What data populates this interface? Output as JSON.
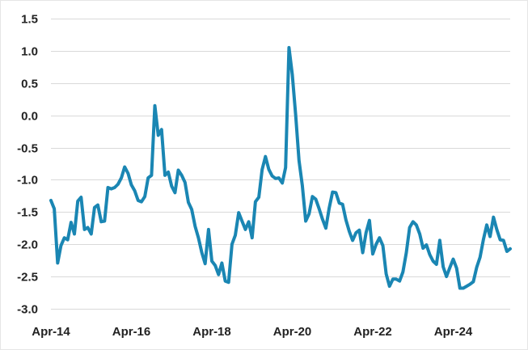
{
  "chart_data": {
    "type": "line",
    "title": "",
    "xlabel": "",
    "ylabel": "",
    "ylim": [
      -3.0,
      1.5
    ],
    "y_ticks": [
      "1.5",
      "1.0",
      "0.5",
      "0.0",
      "-0.5",
      "-1.0",
      "-1.5",
      "-2.0",
      "-2.5",
      "-3.0"
    ],
    "x_ticks": [
      "Apr-14",
      "Apr-16",
      "Apr-18",
      "Apr-20",
      "Apr-22",
      "Apr-24"
    ],
    "x_tick_dates": [
      "2014-04",
      "2016-04",
      "2018-04",
      "2020-04",
      "2022-04",
      "2024-04"
    ],
    "x_range": [
      "2014-04",
      "2025-09"
    ],
    "grid": true,
    "legend": "none",
    "color": "#1a86b3",
    "series": [
      {
        "x": [
          "2014-04",
          "2014-05",
          "2014-06",
          "2014-07",
          "2014-08",
          "2014-09",
          "2014-10",
          "2014-11",
          "2014-12",
          "2015-01",
          "2015-02",
          "2015-03",
          "2015-04",
          "2015-05",
          "2015-06",
          "2015-07",
          "2015-08",
          "2015-09",
          "2015-10",
          "2015-11",
          "2015-12",
          "2016-01",
          "2016-02",
          "2016-03",
          "2016-04",
          "2016-05",
          "2016-06",
          "2016-07",
          "2016-08",
          "2016-09",
          "2016-10",
          "2016-11",
          "2016-12",
          "2017-01",
          "2017-02",
          "2017-03",
          "2017-04",
          "2017-05",
          "2017-06",
          "2017-07",
          "2017-08",
          "2017-09",
          "2017-10",
          "2017-11",
          "2017-12",
          "2018-01",
          "2018-02",
          "2018-03",
          "2018-04",
          "2018-05",
          "2018-06",
          "2018-07",
          "2018-08",
          "2018-09",
          "2018-10",
          "2018-11",
          "2018-12",
          "2019-01",
          "2019-02",
          "2019-03",
          "2019-04",
          "2019-05",
          "2019-06",
          "2019-07",
          "2019-08",
          "2019-09",
          "2019-10",
          "2019-11",
          "2019-12",
          "2020-01",
          "2020-02",
          "2020-03",
          "2020-04",
          "2020-05",
          "2020-06",
          "2020-07",
          "2020-08",
          "2020-09",
          "2020-10",
          "2020-11",
          "2020-12",
          "2021-01",
          "2021-02",
          "2021-03",
          "2021-04",
          "2021-05",
          "2021-06",
          "2021-07",
          "2021-08",
          "2021-09",
          "2021-10",
          "2021-11",
          "2021-12",
          "2022-01",
          "2022-02",
          "2022-03",
          "2022-04",
          "2022-05",
          "2022-06",
          "2022-07",
          "2022-08",
          "2022-09",
          "2022-10",
          "2022-11",
          "2022-12",
          "2023-01",
          "2023-02",
          "2023-03",
          "2023-04",
          "2023-05",
          "2023-06",
          "2023-07",
          "2023-08",
          "2023-09",
          "2023-10",
          "2023-11",
          "2023-12",
          "2024-01",
          "2024-02",
          "2024-03",
          "2024-04",
          "2024-05",
          "2024-06",
          "2024-07",
          "2024-08",
          "2024-09",
          "2024-10",
          "2024-11",
          "2024-12",
          "2025-01",
          "2025-02",
          "2025-03",
          "2025-04",
          "2025-05",
          "2025-06",
          "2025-07",
          "2025-08",
          "2025-09"
        ],
        "values": [
          -1.32,
          -1.45,
          -2.29,
          -2.02,
          -1.9,
          -1.93,
          -1.66,
          -1.84,
          -1.33,
          -1.27,
          -1.77,
          -1.74,
          -1.84,
          -1.43,
          -1.39,
          -1.65,
          -1.64,
          -1.12,
          -1.14,
          -1.12,
          -1.07,
          -0.97,
          -0.8,
          -0.9,
          -1.08,
          -1.17,
          -1.32,
          -1.34,
          -1.26,
          -0.97,
          -0.93,
          0.15,
          -0.31,
          -0.22,
          -0.93,
          -0.88,
          -1.1,
          -1.2,
          -0.85,
          -0.93,
          -1.04,
          -1.35,
          -1.46,
          -1.72,
          -1.9,
          -2.13,
          -2.3,
          -1.77,
          -2.26,
          -2.33,
          -2.47,
          -2.29,
          -2.57,
          -2.59,
          -2.0,
          -1.86,
          -1.51,
          -1.64,
          -1.77,
          -1.65,
          -1.9,
          -1.34,
          -1.27,
          -0.84,
          -0.64,
          -0.84,
          -0.94,
          -0.98,
          -0.97,
          -1.05,
          -0.81,
          1.05,
          0.63,
          0.0,
          -0.7,
          -1.09,
          -1.64,
          -1.53,
          -1.26,
          -1.3,
          -1.45,
          -1.61,
          -1.75,
          -1.44,
          -1.19,
          -1.2,
          -1.36,
          -1.38,
          -1.62,
          -1.8,
          -1.94,
          -1.82,
          -1.78,
          -2.13,
          -1.82,
          -1.63,
          -2.15,
          -2.0,
          -1.9,
          -2.02,
          -2.46,
          -2.65,
          -2.54,
          -2.54,
          -2.57,
          -2.43,
          -2.13,
          -1.74,
          -1.65,
          -1.7,
          -1.84,
          -2.06,
          -2.01,
          -2.16,
          -2.26,
          -2.31,
          -1.94,
          -2.35,
          -2.5,
          -2.36,
          -2.23,
          -2.37,
          -2.68,
          -2.68,
          -2.65,
          -2.62,
          -2.58,
          -2.36,
          -2.2,
          -1.93,
          -1.7,
          -1.88,
          -1.58,
          -1.77,
          -1.93,
          -1.94,
          -2.11,
          -2.07
        ]
      }
    ]
  }
}
